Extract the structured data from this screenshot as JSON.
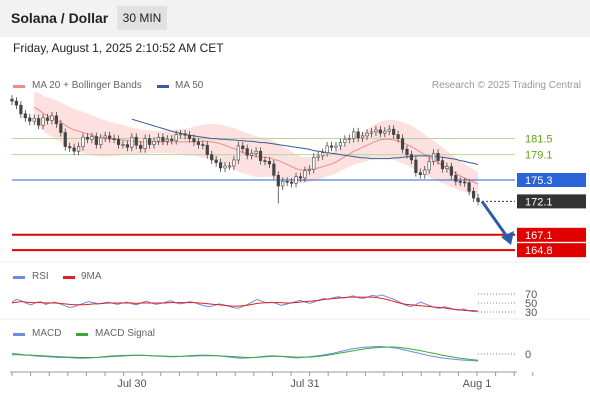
{
  "header": {
    "title": "Solana / Dollar",
    "timeframe": "30 MIN"
  },
  "timestamp": "Friday, August 1, 2025 2:10:52 AM CET",
  "legend": {
    "ma20": "MA 20 + Bollinger Bands",
    "ma50": "MA 50",
    "credit": "Research © 2025 Trading Central",
    "rsi": "RSI",
    "rsi_ma": "9MA",
    "macd": "MACD",
    "macd_signal": "MACD Signal"
  },
  "colors": {
    "ma20": "#f08b8b",
    "band": "#fde0e0",
    "ma50": "#3d5a99",
    "green_level": "#b8d89a",
    "green_text": "#5fa319",
    "pivot": "#2a64d6",
    "red_level": "#e00000",
    "current": "#333333",
    "rsi": "#6b8de0",
    "rsi_ma": "#e02020",
    "macd": "#6b8de0",
    "macd_signal": "#3aaa35"
  },
  "chart_data": [
    {
      "type": "candlestick",
      "title": "Solana / Dollar",
      "x_ticks": [
        "Jul 30",
        "Jul 31",
        "Aug 1"
      ],
      "levels": [
        {
          "label": "181.5",
          "value": 181.5,
          "kind": "resistance"
        },
        {
          "label": "179.1",
          "value": 179.1,
          "kind": "resistance"
        },
        {
          "label": "175.3",
          "value": 175.3,
          "kind": "pivot"
        },
        {
          "label": "172.1",
          "value": 172.1,
          "kind": "current"
        },
        {
          "label": "167.1",
          "value": 167.1,
          "kind": "support"
        },
        {
          "label": "164.8",
          "value": 164.8,
          "kind": "support"
        }
      ],
      "close": [
        187.1,
        186.5,
        185.2,
        184.6,
        184.1,
        184.5,
        183.5,
        184.6,
        184.2,
        184.9,
        183.7,
        182.4,
        180.3,
        180.1,
        179.6,
        180.3,
        181.7,
        181.4,
        181.8,
        180.6,
        181.6,
        181.9,
        181.5,
        181.4,
        180.6,
        180.6,
        180.2,
        181.7,
        180.5,
        180.0,
        181.5,
        180.6,
        181.1,
        181.7,
        181.1,
        181.4,
        181.2,
        182.1,
        182.2,
        182.0,
        181.5,
        181.0,
        180.6,
        180.5,
        179.1,
        178.3,
        177.9,
        177.1,
        177.4,
        177.4,
        178.3,
        180.4,
        180.0,
        179.0,
        179.3,
        179.6,
        178.2,
        178.1,
        177.7,
        176.0,
        174.4,
        175.1,
        175.0,
        174.8,
        175.8,
        175.6,
        176.7,
        176.9,
        178.7,
        178.9,
        179.4,
        180.4,
        180.2,
        180.4,
        180.9,
        181.4,
        181.5,
        182.5,
        181.6,
        181.9,
        182.3,
        182.5,
        182.8,
        182.3,
        182.6,
        182.9,
        182.1,
        181.5,
        179.9,
        179.1,
        178.3,
        176.4,
        176.1,
        176.8,
        178.1,
        179.3,
        178.2,
        177.0,
        177.3,
        176.0,
        175.1,
        175.0,
        174.9,
        173.6,
        172.6,
        172.1
      ],
      "ma20": [
        186.2,
        185.8,
        185.3,
        184.9,
        184.6,
        184.3,
        183.9,
        183.5,
        183.1,
        182.8,
        182.6,
        182.4,
        182.2,
        182.0,
        181.8,
        181.6,
        181.5,
        181.4,
        181.4,
        181.3,
        181.3,
        181.2,
        181.1,
        181.1,
        181.0,
        181.0,
        181.0,
        181.0,
        181.0,
        181.0,
        181.0,
        181.0,
        181.0,
        181.0,
        181.0,
        181.0,
        181.1,
        181.1,
        181.1,
        181.1,
        181.0,
        180.9,
        180.7,
        180.5,
        180.2,
        180.0,
        179.7,
        179.4,
        179.2,
        179.0,
        178.8,
        178.7,
        178.7,
        178.6,
        178.4,
        178.2,
        177.9,
        177.6,
        177.3,
        177.0,
        176.8,
        176.8,
        176.9,
        177.0,
        177.1,
        177.3,
        177.5,
        177.7,
        178.0,
        178.4,
        178.8,
        179.2,
        179.6,
        179.9,
        180.2,
        180.5,
        180.8,
        181.1,
        181.3,
        181.4,
        181.4,
        181.3,
        181.1,
        180.9,
        180.6,
        180.3,
        179.9,
        179.5,
        179.1,
        178.7,
        178.3,
        177.9,
        177.5,
        177.1,
        176.7,
        176.3,
        175.9,
        175.6,
        175.3,
        175.0,
        174.7
      ],
      "ma50": [
        184.4,
        184.2,
        184.0,
        183.8,
        183.6,
        183.4,
        183.2,
        183.0,
        182.8,
        182.6,
        182.4,
        182.3,
        182.1,
        182.0,
        181.9,
        181.8,
        181.7,
        181.6,
        181.5,
        181.5,
        181.4,
        181.4,
        181.3,
        181.3,
        181.2,
        181.2,
        181.1,
        181.1,
        181.0,
        180.9,
        180.9,
        180.8,
        180.7,
        180.6,
        180.5,
        180.4,
        180.3,
        180.2,
        180.1,
        180.0,
        179.9,
        179.7,
        179.6,
        179.5,
        179.4,
        179.3,
        179.2,
        179.1,
        179.0,
        178.9,
        178.8,
        178.7,
        178.6,
        178.6,
        178.5,
        178.5,
        178.5,
        178.5,
        178.5,
        178.6,
        178.6,
        178.7,
        178.8,
        178.8,
        178.9,
        178.9,
        178.9,
        178.9,
        178.8,
        178.8,
        178.7,
        178.6,
        178.5,
        178.4,
        178.2,
        178.1,
        177.9,
        177.8,
        177.6
      ],
      "band_width": 2.4
    },
    {
      "type": "line",
      "title": "RSI",
      "y_ticks": [
        70,
        50,
        30
      ],
      "series": [
        {
          "name": "RSI",
          "values": [
            52,
            58,
            55,
            49,
            46,
            51,
            53,
            47,
            50,
            52,
            48,
            44,
            40,
            42,
            46,
            50,
            53,
            51,
            48,
            50,
            52,
            49,
            47,
            50,
            52,
            48,
            46,
            51,
            54,
            50,
            47,
            49,
            52,
            55,
            51,
            48,
            50,
            53,
            51,
            47,
            44,
            42,
            44,
            48,
            46,
            43,
            40,
            38,
            42,
            47,
            52,
            58,
            54,
            50,
            52,
            49,
            45,
            47,
            50,
            53,
            56,
            52,
            49,
            53,
            57,
            60,
            58,
            62,
            64,
            61,
            63,
            66,
            62,
            60,
            63,
            67,
            65,
            68,
            64,
            60,
            56,
            50,
            45,
            42,
            46,
            52,
            48,
            44,
            40,
            38,
            42,
            39,
            36,
            34,
            37,
            33,
            31,
            32
          ]
        },
        {
          "name": "9MA",
          "values": [
            50,
            52,
            53,
            52,
            51,
            51,
            51,
            50,
            50,
            50,
            49,
            48,
            47,
            46,
            46,
            46,
            47,
            48,
            48,
            49,
            50,
            50,
            50,
            50,
            50,
            50,
            49,
            50,
            50,
            50,
            50,
            50,
            50,
            51,
            51,
            51,
            51,
            51,
            51,
            50,
            49,
            48,
            47,
            46,
            45,
            44,
            43,
            43,
            44,
            45,
            47,
            49,
            50,
            51,
            51,
            51,
            51,
            50,
            50,
            51,
            52,
            53,
            54,
            55,
            56,
            58,
            59,
            60,
            61,
            62,
            63,
            63,
            63,
            63,
            63,
            63,
            62,
            60,
            58,
            55,
            52,
            49,
            47,
            46,
            45,
            44,
            43,
            42,
            41,
            40,
            39,
            37,
            36,
            35,
            34,
            33,
            33,
            32
          ]
        }
      ]
    },
    {
      "type": "line",
      "title": "MACD",
      "y_ticks": [
        0
      ],
      "series": [
        {
          "name": "MACD",
          "values": [
            0.2,
            0.0,
            -0.2,
            -0.4,
            -0.6,
            -0.7,
            -0.8,
            -0.9,
            -1.0,
            -1.0,
            -1.1,
            -1.2,
            -1.2,
            -1.1,
            -1.0,
            -0.8,
            -0.6,
            -0.5,
            -0.4,
            -0.4,
            -0.3,
            -0.3,
            -0.4,
            -0.5,
            -0.6,
            -0.7,
            -0.8,
            -0.8,
            -0.7,
            -0.5,
            -0.4,
            -0.3,
            -0.3,
            -0.4,
            -0.5,
            -0.7,
            -0.9,
            -1.1,
            -1.2,
            -1.1,
            -1.0,
            -0.8,
            -0.6,
            -0.5,
            -0.6,
            -0.8,
            -1.0,
            -1.1,
            -1.0,
            -0.8,
            -0.6,
            -0.4,
            -0.1,
            0.2,
            0.6,
            1.0,
            1.4,
            1.7,
            1.9,
            2.0,
            2.1,
            2.1,
            2.0,
            1.8,
            1.5,
            1.1,
            0.7,
            0.3,
            -0.1,
            -0.5,
            -0.8,
            -1.1,
            -1.3,
            -1.5,
            -1.7,
            -1.8,
            -1.9,
            -2.0
          ]
        },
        {
          "name": "MACD Signal",
          "values": [
            -0.2,
            -0.2,
            -0.3,
            -0.3,
            -0.4,
            -0.5,
            -0.6,
            -0.7,
            -0.8,
            -0.9,
            -0.9,
            -1.0,
            -1.0,
            -1.0,
            -1.0,
            -0.9,
            -0.8,
            -0.7,
            -0.6,
            -0.5,
            -0.4,
            -0.4,
            -0.4,
            -0.5,
            -0.5,
            -0.6,
            -0.7,
            -0.7,
            -0.7,
            -0.6,
            -0.6,
            -0.5,
            -0.5,
            -0.5,
            -0.5,
            -0.6,
            -0.7,
            -0.8,
            -0.9,
            -1.0,
            -1.0,
            -0.9,
            -0.8,
            -0.7,
            -0.7,
            -0.7,
            -0.8,
            -0.9,
            -0.9,
            -0.9,
            -0.8,
            -0.6,
            -0.4,
            -0.1,
            0.2,
            0.5,
            0.8,
            1.1,
            1.4,
            1.6,
            1.8,
            1.9,
            2.0,
            2.0,
            1.9,
            1.7,
            1.4,
            1.1,
            0.8,
            0.4,
            0.1,
            -0.3,
            -0.6,
            -0.9,
            -1.2,
            -1.4,
            -1.6,
            -1.8
          ]
        }
      ]
    }
  ]
}
